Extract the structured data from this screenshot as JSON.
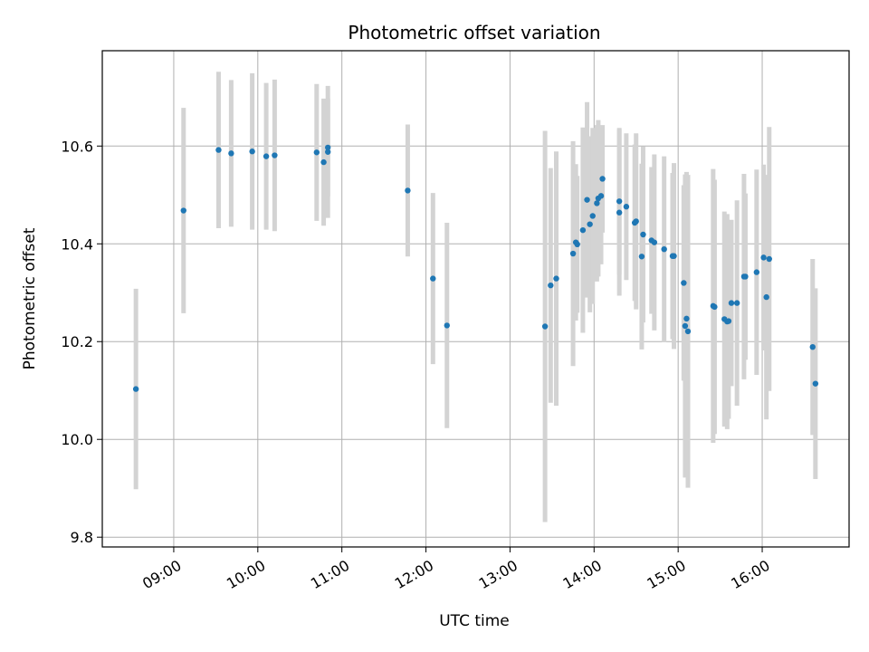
{
  "chart_data": {
    "type": "scatter",
    "title": "Photometric offset variation",
    "xlabel": "UTC time",
    "ylabel": "Photometric offset",
    "x_time_unit": "hours",
    "xlim": [
      "08:09",
      "17:02"
    ],
    "ylim": [
      9.78,
      10.795
    ],
    "grid": true,
    "x_ticks": [
      "09:00",
      "10:00",
      "11:00",
      "12:00",
      "13:00",
      "14:00",
      "15:00",
      "16:00"
    ],
    "y_ticks": [
      "9.8",
      "10.0",
      "10.2",
      "10.4",
      "10.6"
    ],
    "y_tick_values": [
      9.8,
      10.0,
      10.2,
      10.4,
      10.6
    ],
    "colors": {
      "points": "#1f77b4",
      "errorbars": "#d3d3d3",
      "grid": "#b0b0b0"
    },
    "series": [
      {
        "x": [
          "08:33",
          "09:07",
          "09:32",
          "09:41",
          "09:56",
          "10:06",
          "10:12",
          "10:42",
          "10:47",
          "10:50",
          "10:50",
          "11:47",
          "12:05",
          "12:15",
          "13:25",
          "13:29",
          "13:33",
          "13:45",
          "13:47",
          "13:48",
          "13:52",
          "13:55",
          "13:57",
          "13:59",
          "14:02",
          "14:03",
          "14:05",
          "14:06",
          "14:18",
          "14:18",
          "14:23",
          "14:29",
          "14:30",
          "14:34",
          "14:35",
          "14:41",
          "14:43",
          "14:50",
          "14:56",
          "14:57",
          "15:04",
          "15:05",
          "15:06",
          "15:07",
          "15:25",
          "15:26",
          "15:33",
          "15:35",
          "15:36",
          "15:38",
          "15:42",
          "15:47",
          "15:48",
          "15:56",
          "16:01",
          "16:03",
          "16:05",
          "16:36",
          "16:38"
        ],
        "y": [
          10.103,
          10.468,
          10.592,
          10.585,
          10.589,
          10.579,
          10.581,
          10.587,
          10.567,
          10.597,
          10.588,
          10.509,
          10.329,
          10.233,
          10.231,
          10.315,
          10.329,
          10.38,
          10.403,
          10.399,
          10.428,
          10.49,
          10.44,
          10.457,
          10.483,
          10.493,
          10.498,
          10.533,
          10.487,
          10.464,
          10.476,
          10.443,
          10.446,
          10.374,
          10.419,
          10.407,
          10.403,
          10.389,
          10.375,
          10.375,
          10.32,
          10.232,
          10.247,
          10.221,
          10.273,
          10.271,
          10.246,
          10.241,
          10.242,
          10.279,
          10.279,
          10.333,
          10.333,
          10.342,
          10.372,
          10.291,
          10.369,
          10.189,
          10.114
        ],
        "yerr": [
          0.205,
          0.21,
          0.16,
          0.15,
          0.16,
          0.15,
          0.155,
          0.14,
          0.13,
          0.1,
          0.135,
          0.135,
          0.175,
          0.21,
          0.4,
          0.24,
          0.26,
          0.23,
          0.16,
          0.14,
          0.21,
          0.2,
          0.18,
          0.18,
          0.16,
          0.16,
          0.14,
          0.11,
          0.15,
          0.17,
          0.15,
          0.16,
          0.18,
          0.19,
          0.18,
          0.15,
          0.18,
          0.19,
          0.17,
          0.19,
          0.2,
          0.31,
          0.3,
          0.32,
          0.28,
          0.26,
          0.22,
          0.22,
          0.2,
          0.17,
          0.21,
          0.21,
          0.17,
          0.21,
          0.19,
          0.25,
          0.27,
          0.18,
          0.195
        ]
      }
    ]
  }
}
